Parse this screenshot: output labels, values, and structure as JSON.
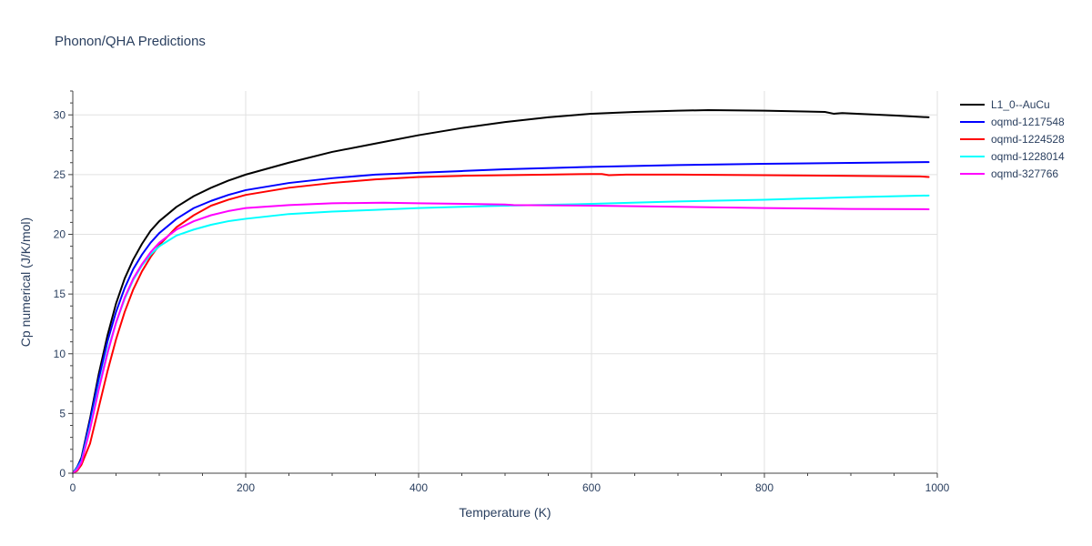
{
  "chart_data": {
    "type": "line",
    "title": "Phonon/QHA Predictions",
    "xlabel": "Temperature (K)",
    "ylabel": "Cp numerical (J/K/mol)",
    "xlim": [
      0,
      1000
    ],
    "ylim": [
      0,
      32
    ],
    "x_ticks": [
      0,
      200,
      400,
      600,
      800,
      1000
    ],
    "y_ticks": [
      0,
      5,
      10,
      15,
      20,
      25,
      30
    ],
    "grid": true,
    "legend_position": "top-right",
    "series": [
      {
        "name": "L1_0--AuCu",
        "color": "#000000",
        "points": [
          [
            0,
            0
          ],
          [
            5,
            0.5
          ],
          [
            10,
            1.3
          ],
          [
            20,
            4.6
          ],
          [
            30,
            8.3
          ],
          [
            40,
            11.5
          ],
          [
            50,
            14.2
          ],
          [
            60,
            16.3
          ],
          [
            70,
            17.9
          ],
          [
            80,
            19.2
          ],
          [
            90,
            20.3
          ],
          [
            100,
            21.1
          ],
          [
            120,
            22.3
          ],
          [
            140,
            23.2
          ],
          [
            160,
            23.9
          ],
          [
            180,
            24.5
          ],
          [
            200,
            25.0
          ],
          [
            250,
            26.0
          ],
          [
            300,
            26.9
          ],
          [
            350,
            27.6
          ],
          [
            400,
            28.3
          ],
          [
            450,
            28.9
          ],
          [
            500,
            29.4
          ],
          [
            550,
            29.8
          ],
          [
            600,
            30.1
          ],
          [
            650,
            30.25
          ],
          [
            700,
            30.35
          ],
          [
            735,
            30.4
          ],
          [
            800,
            30.35
          ],
          [
            870,
            30.25
          ],
          [
            880,
            30.1
          ],
          [
            890,
            30.15
          ],
          [
            950,
            29.95
          ],
          [
            990,
            29.8
          ]
        ]
      },
      {
        "name": "oqmd-1217548",
        "color": "#0000ff",
        "points": [
          [
            0,
            0
          ],
          [
            5,
            0.5
          ],
          [
            10,
            1.2
          ],
          [
            20,
            4.4
          ],
          [
            30,
            7.9
          ],
          [
            40,
            11.0
          ],
          [
            50,
            13.5
          ],
          [
            60,
            15.5
          ],
          [
            70,
            17.1
          ],
          [
            80,
            18.3
          ],
          [
            90,
            19.3
          ],
          [
            100,
            20.1
          ],
          [
            120,
            21.3
          ],
          [
            140,
            22.2
          ],
          [
            160,
            22.8
          ],
          [
            180,
            23.3
          ],
          [
            200,
            23.7
          ],
          [
            250,
            24.3
          ],
          [
            300,
            24.7
          ],
          [
            350,
            25.0
          ],
          [
            400,
            25.15
          ],
          [
            450,
            25.3
          ],
          [
            500,
            25.45
          ],
          [
            600,
            25.65
          ],
          [
            700,
            25.8
          ],
          [
            800,
            25.9
          ],
          [
            900,
            25.98
          ],
          [
            990,
            26.05
          ]
        ]
      },
      {
        "name": "oqmd-1224528",
        "color": "#ff0000",
        "points": [
          [
            0,
            0
          ],
          [
            5,
            0.2
          ],
          [
            10,
            0.7
          ],
          [
            20,
            2.5
          ],
          [
            30,
            5.5
          ],
          [
            40,
            8.5
          ],
          [
            50,
            11.2
          ],
          [
            60,
            13.5
          ],
          [
            70,
            15.4
          ],
          [
            80,
            16.9
          ],
          [
            90,
            18.1
          ],
          [
            100,
            19.1
          ],
          [
            120,
            20.6
          ],
          [
            140,
            21.6
          ],
          [
            160,
            22.4
          ],
          [
            180,
            22.9
          ],
          [
            200,
            23.3
          ],
          [
            250,
            23.9
          ],
          [
            300,
            24.3
          ],
          [
            350,
            24.6
          ],
          [
            400,
            24.8
          ],
          [
            450,
            24.9
          ],
          [
            500,
            24.95
          ],
          [
            550,
            25.0
          ],
          [
            600,
            25.05
          ],
          [
            612,
            25.05
          ],
          [
            620,
            24.95
          ],
          [
            640,
            25.0
          ],
          [
            700,
            25.0
          ],
          [
            800,
            24.95
          ],
          [
            900,
            24.9
          ],
          [
            980,
            24.85
          ],
          [
            990,
            24.8
          ]
        ]
      },
      {
        "name": "oqmd-1228014",
        "color": "#00ffff",
        "points": [
          [
            0,
            0
          ],
          [
            5,
            0.4
          ],
          [
            10,
            1.0
          ],
          [
            20,
            3.9
          ],
          [
            30,
            7.2
          ],
          [
            40,
            10.2
          ],
          [
            50,
            12.6
          ],
          [
            60,
            14.6
          ],
          [
            70,
            16.2
          ],
          [
            80,
            17.4
          ],
          [
            90,
            18.3
          ],
          [
            100,
            19.0
          ],
          [
            120,
            19.9
          ],
          [
            140,
            20.4
          ],
          [
            160,
            20.8
          ],
          [
            180,
            21.1
          ],
          [
            200,
            21.3
          ],
          [
            250,
            21.7
          ],
          [
            300,
            21.9
          ],
          [
            350,
            22.05
          ],
          [
            400,
            22.2
          ],
          [
            450,
            22.3
          ],
          [
            500,
            22.4
          ],
          [
            600,
            22.55
          ],
          [
            700,
            22.75
          ],
          [
            800,
            22.9
          ],
          [
            900,
            23.1
          ],
          [
            990,
            23.25
          ]
        ]
      },
      {
        "name": "oqmd-327766",
        "color": "#ff00ff",
        "points": [
          [
            0,
            0
          ],
          [
            5,
            0.3
          ],
          [
            10,
            0.9
          ],
          [
            20,
            3.7
          ],
          [
            30,
            7.0
          ],
          [
            40,
            10.0
          ],
          [
            50,
            12.6
          ],
          [
            60,
            14.7
          ],
          [
            70,
            16.3
          ],
          [
            80,
            17.5
          ],
          [
            90,
            18.5
          ],
          [
            100,
            19.3
          ],
          [
            120,
            20.4
          ],
          [
            140,
            21.1
          ],
          [
            160,
            21.6
          ],
          [
            180,
            21.95
          ],
          [
            200,
            22.2
          ],
          [
            250,
            22.45
          ],
          [
            300,
            22.6
          ],
          [
            360,
            22.65
          ],
          [
            400,
            22.6
          ],
          [
            500,
            22.5
          ],
          [
            510,
            22.45
          ],
          [
            600,
            22.4
          ],
          [
            700,
            22.3
          ],
          [
            800,
            22.2
          ],
          [
            900,
            22.12
          ],
          [
            990,
            22.1
          ]
        ]
      }
    ]
  }
}
